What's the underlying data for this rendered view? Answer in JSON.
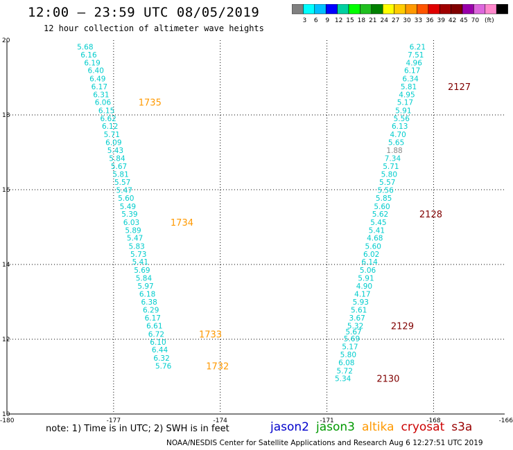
{
  "header": {
    "title": "12:00 — 23:59 UTC 08/05/2019",
    "subtitle": "12 hour collection of altimeter wave heights"
  },
  "colorbar": {
    "colors": [
      "#808080",
      "#00ffff",
      "#00bfff",
      "#0000ff",
      "#00d0a0",
      "#00ff00",
      "#20c020",
      "#008000",
      "#ffff00",
      "#ffcc00",
      "#ff9900",
      "#ff5500",
      "#e00000",
      "#a00000",
      "#800000",
      "#9900aa",
      "#dd66dd",
      "#ff88cc",
      "#000000"
    ],
    "labels": [
      "3",
      "6",
      "9",
      "12",
      "15",
      "18",
      "21",
      "24",
      "27",
      "30",
      "33",
      "36",
      "39",
      "42",
      "45",
      "70",
      "(ft)"
    ]
  },
  "chart_data": {
    "type": "scatter",
    "title": "12 hour collection of altimeter wave heights",
    "xlim": [
      -180,
      -166
    ],
    "ylim": [
      10,
      20
    ],
    "x_ticks": [
      "-180",
      "-177",
      "-174",
      "-171",
      "-168",
      "-166"
    ],
    "y_ticks": [
      "20",
      "18",
      "16",
      "14",
      "12",
      "10"
    ],
    "grid": true,
    "series": [
      {
        "name": "altika",
        "color": "#00cccc",
        "points": [
          {
            "x": -177.8,
            "y": 19.82,
            "v": "5.68"
          },
          {
            "x": -177.7,
            "y": 19.61,
            "v": "6.16"
          },
          {
            "x": -177.6,
            "y": 19.4,
            "v": "6.19"
          },
          {
            "x": -177.5,
            "y": 19.19,
            "v": "6.40"
          },
          {
            "x": -177.45,
            "y": 18.97,
            "v": "6.49"
          },
          {
            "x": -177.4,
            "y": 18.76,
            "v": "6.17"
          },
          {
            "x": -177.35,
            "y": 18.55,
            "v": "6.31"
          },
          {
            "x": -177.3,
            "y": 18.34,
            "v": "6.06"
          },
          {
            "x": -177.2,
            "y": 18.12,
            "v": "6.15"
          },
          {
            "x": -177.15,
            "y": 17.91,
            "v": "6.62"
          },
          {
            "x": -177.1,
            "y": 17.7,
            "v": "6.12"
          },
          {
            "x": -177.05,
            "y": 17.48,
            "v": "5.71"
          },
          {
            "x": -177.0,
            "y": 17.27,
            "v": "6.09"
          },
          {
            "x": -176.95,
            "y": 17.06,
            "v": "5.43"
          },
          {
            "x": -176.9,
            "y": 16.84,
            "v": "5.84"
          },
          {
            "x": -176.85,
            "y": 16.63,
            "v": "5.67"
          },
          {
            "x": -176.8,
            "y": 16.42,
            "v": "5.81"
          },
          {
            "x": -176.75,
            "y": 16.2,
            "v": "5.57"
          },
          {
            "x": -176.7,
            "y": 15.99,
            "v": "5.47"
          },
          {
            "x": -176.65,
            "y": 15.78,
            "v": "5.60"
          },
          {
            "x": -176.6,
            "y": 15.56,
            "v": "5.49"
          },
          {
            "x": -176.55,
            "y": 15.35,
            "v": "5.39"
          },
          {
            "x": -176.5,
            "y": 15.13,
            "v": "6.03"
          },
          {
            "x": -176.45,
            "y": 14.92,
            "v": "5.89"
          },
          {
            "x": -176.4,
            "y": 14.71,
            "v": "5.47"
          },
          {
            "x": -176.35,
            "y": 14.49,
            "v": "5.83"
          },
          {
            "x": -176.3,
            "y": 14.28,
            "v": "5.73"
          },
          {
            "x": -176.25,
            "y": 14.07,
            "v": "5.41"
          },
          {
            "x": -176.2,
            "y": 13.85,
            "v": "5.69"
          },
          {
            "x": -176.15,
            "y": 13.64,
            "v": "5.84"
          },
          {
            "x": -176.1,
            "y": 13.43,
            "v": "5.97"
          },
          {
            "x": -176.05,
            "y": 13.21,
            "v": "6.18"
          },
          {
            "x": -176.0,
            "y": 13.0,
            "v": "6.38"
          },
          {
            "x": -175.95,
            "y": 12.79,
            "v": "6.29"
          },
          {
            "x": -175.9,
            "y": 12.57,
            "v": "6.17"
          },
          {
            "x": -175.85,
            "y": 12.36,
            "v": "6.61"
          },
          {
            "x": -175.8,
            "y": 12.14,
            "v": "6.72"
          },
          {
            "x": -175.75,
            "y": 11.93,
            "v": "6.10"
          },
          {
            "x": -175.7,
            "y": 11.72,
            "v": "6.44"
          },
          {
            "x": -175.65,
            "y": 11.5,
            "v": "6.32"
          },
          {
            "x": -175.6,
            "y": 11.29,
            "v": "5.76"
          },
          {
            "x": -168.45,
            "y": 19.82,
            "v": "6.21"
          },
          {
            "x": -168.5,
            "y": 19.61,
            "v": "7.51"
          },
          {
            "x": -168.55,
            "y": 19.4,
            "v": "4.96"
          },
          {
            "x": -168.6,
            "y": 19.19,
            "v": "6.17"
          },
          {
            "x": -168.65,
            "y": 18.97,
            "v": "6.34"
          },
          {
            "x": -168.7,
            "y": 18.76,
            "v": "5.81"
          },
          {
            "x": -168.75,
            "y": 18.55,
            "v": "4.95"
          },
          {
            "x": -168.8,
            "y": 18.34,
            "v": "5.17"
          },
          {
            "x": -168.85,
            "y": 18.12,
            "v": "5.91"
          },
          {
            "x": -168.9,
            "y": 17.91,
            "v": "5.56"
          },
          {
            "x": -168.95,
            "y": 17.7,
            "v": "6.13"
          },
          {
            "x": -169.0,
            "y": 17.48,
            "v": "4.70"
          },
          {
            "x": -169.05,
            "y": 17.27,
            "v": "5.65"
          },
          {
            "x": -169.1,
            "y": 17.06,
            "v": "1.88",
            "gray": true
          },
          {
            "x": -169.15,
            "y": 16.84,
            "v": "7.34"
          },
          {
            "x": -169.2,
            "y": 16.63,
            "v": "5.71"
          },
          {
            "x": -169.25,
            "y": 16.42,
            "v": "5.80"
          },
          {
            "x": -169.3,
            "y": 16.2,
            "v": "5.57"
          },
          {
            "x": -169.35,
            "y": 15.99,
            "v": "5.56"
          },
          {
            "x": -169.4,
            "y": 15.78,
            "v": "5.85"
          },
          {
            "x": -169.45,
            "y": 15.56,
            "v": "5.60"
          },
          {
            "x": -169.5,
            "y": 15.35,
            "v": "5.62"
          },
          {
            "x": -169.55,
            "y": 15.13,
            "v": "5.45"
          },
          {
            "x": -169.6,
            "y": 14.92,
            "v": "5.41"
          },
          {
            "x": -169.65,
            "y": 14.71,
            "v": "4.68"
          },
          {
            "x": -169.7,
            "y": 14.49,
            "v": "5.60"
          },
          {
            "x": -169.75,
            "y": 14.28,
            "v": "6.02"
          },
          {
            "x": -169.8,
            "y": 14.07,
            "v": "6.14"
          },
          {
            "x": -169.85,
            "y": 13.85,
            "v": "5.06"
          },
          {
            "x": -169.9,
            "y": 13.64,
            "v": "5.91"
          },
          {
            "x": -169.95,
            "y": 13.43,
            "v": "4.90"
          },
          {
            "x": -170.0,
            "y": 13.21,
            "v": "4.17"
          },
          {
            "x": -170.05,
            "y": 13.0,
            "v": "5.93"
          },
          {
            "x": -170.1,
            "y": 12.79,
            "v": "5.61"
          },
          {
            "x": -170.15,
            "y": 12.57,
            "v": "3.67"
          },
          {
            "x": -170.2,
            "y": 12.36,
            "v": "5.32"
          },
          {
            "x": -170.25,
            "y": 12.2,
            "v": "5.67"
          },
          {
            "x": -170.3,
            "y": 12.02,
            "v": "5.69"
          },
          {
            "x": -170.35,
            "y": 11.81,
            "v": "5.17"
          },
          {
            "x": -170.4,
            "y": 11.59,
            "v": "5.80"
          },
          {
            "x": -170.45,
            "y": 11.38,
            "v": "6.08"
          },
          {
            "x": -170.5,
            "y": 11.16,
            "v": "5.72"
          },
          {
            "x": -170.55,
            "y": 10.95,
            "v": "5.34"
          }
        ]
      }
    ],
    "time_labels": [
      {
        "x": -176.3,
        "y": 18.34,
        "t": "1735",
        "color": "#ff9900"
      },
      {
        "x": -175.4,
        "y": 15.13,
        "t": "1734",
        "color": "#ff9900"
      },
      {
        "x": -174.6,
        "y": 12.14,
        "t": "1733",
        "color": "#ff9900"
      },
      {
        "x": -174.4,
        "y": 11.29,
        "t": "1732",
        "color": "#ff9900"
      },
      {
        "x": -167.6,
        "y": 18.76,
        "t": "2127",
        "color": "#800000"
      },
      {
        "x": -168.4,
        "y": 15.35,
        "t": "2128",
        "color": "#800000"
      },
      {
        "x": -169.2,
        "y": 12.36,
        "t": "2129",
        "color": "#800000"
      },
      {
        "x": -169.6,
        "y": 10.95,
        "t": "2130",
        "color": "#800000"
      }
    ]
  },
  "note": {
    "text": "note: 1) Time is in UTC; 2) SWH is in feet"
  },
  "legend": {
    "items": [
      {
        "label": "jason2",
        "color": "#0000cc"
      },
      {
        "label": "jason3",
        "color": "#009900"
      },
      {
        "label": "altika",
        "color": "#ff9900"
      },
      {
        "label": "cryosat",
        "color": "#cc0000"
      },
      {
        "label": "s3a",
        "color": "#990000"
      }
    ]
  },
  "footer": {
    "text": "NOAA/NESDIS Center for Satellite Applications and Research   Aug  6 12:27:51 UTC 2019"
  }
}
